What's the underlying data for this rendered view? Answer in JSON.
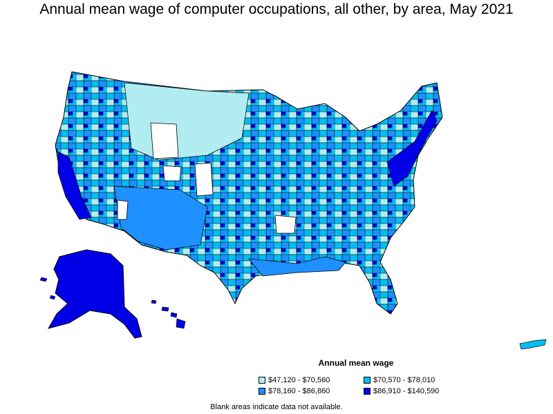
{
  "title": "Annual mean wage of computer occupations, all other, by area, May 2021",
  "legend": {
    "title": "Annual mean wage",
    "items": [
      {
        "label": "$47,120 - $70,560",
        "color": "#b0ecf0"
      },
      {
        "label": "$70,570 - $78,010",
        "color": "#00bff3"
      },
      {
        "label": "$78,160 - $86,860",
        "color": "#1e90ff"
      },
      {
        "label": "$86,910 - $140,590",
        "color": "#0000e6"
      }
    ]
  },
  "footnote": "Blank areas indicate data not available.",
  "colors": {
    "outline": "#000000",
    "no_data": "#ffffff"
  }
}
